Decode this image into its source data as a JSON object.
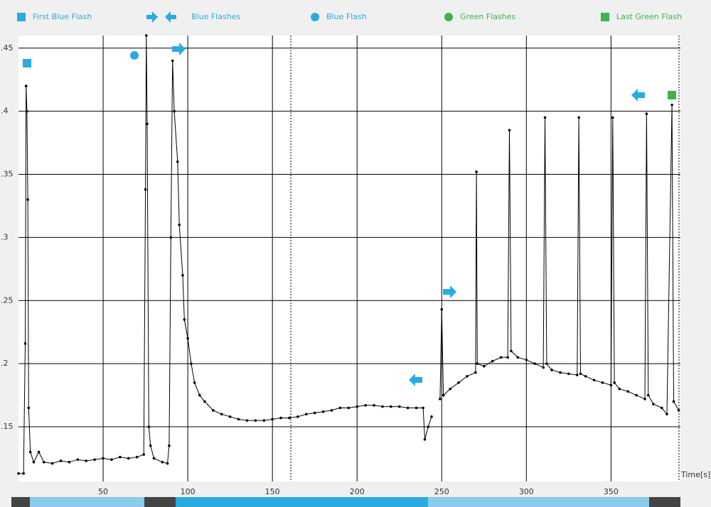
{
  "chart_data": {
    "type": "line",
    "x_label": "Time[s]",
    "legend": [
      {
        "label": "First Blue Flash",
        "color": "#29abe2",
        "shape": "square"
      },
      {
        "label": "Blue Flashes",
        "color": "#29abe2",
        "shape": "arrows"
      },
      {
        "label": "Blue Flash",
        "color": "#29abe2",
        "shape": "circle"
      },
      {
        "label": "Green Flashes",
        "color": "#39b54a",
        "shape": "circle"
      },
      {
        "label": "Last Green Flash",
        "color": "#39b54a",
        "shape": "square"
      }
    ],
    "x": [
      0,
      3,
      4,
      4.5,
      5,
      5.5,
      6,
      7,
      9,
      12,
      15,
      20,
      25,
      30,
      35,
      40,
      45,
      50,
      55,
      60,
      65,
      70,
      74,
      75,
      75.5,
      76,
      77,
      78,
      80,
      85,
      88,
      89,
      90,
      91,
      92,
      94,
      95,
      97,
      98,
      100,
      102,
      104,
      107,
      110,
      115,
      120,
      125,
      130,
      135,
      140,
      145,
      150,
      155,
      160,
      165,
      170,
      175,
      180,
      185,
      190,
      195,
      200,
      205,
      210,
      215,
      220,
      225,
      230,
      235,
      239,
      240,
      242,
      244,
      246,
      249,
      250,
      251,
      255,
      260,
      265,
      270,
      270.5,
      271,
      275,
      280,
      285,
      289,
      290,
      291,
      295,
      300,
      305,
      310,
      311,
      312,
      315,
      320,
      325,
      330,
      331,
      332,
      335,
      340,
      345,
      350,
      351,
      352,
      355,
      360,
      365,
      370,
      371,
      372,
      375,
      380,
      383,
      386,
      387,
      390
    ],
    "series": [
      {
        "color": "#000000",
        "values": [
          0.113,
          0.113,
          0.216,
          0.42,
          0.4,
          0.33,
          0.165,
          0.13,
          0.122,
          0.13,
          0.122,
          0.121,
          0.123,
          0.122,
          0.124,
          0.123,
          0.124,
          0.125,
          0.124,
          0.126,
          0.125,
          0.126,
          0.128,
          0.338,
          0.46,
          0.39,
          0.15,
          0.135,
          0.125,
          0.122,
          0.121,
          0.135,
          0.3,
          0.44,
          0.4,
          0.36,
          0.31,
          0.27,
          0.235,
          0.22,
          0.2,
          0.185,
          0.175,
          0.17,
          0.163,
          0.16,
          0.158,
          0.156,
          0.155,
          0.155,
          0.155,
          0.156,
          0.157,
          0.157,
          0.158,
          0.16,
          0.161,
          0.162,
          0.163,
          0.165,
          0.165,
          0.166,
          0.167,
          0.167,
          0.166,
          0.166,
          0.166,
          0.165,
          0.165,
          0.165,
          0.14,
          0.15,
          0.158,
          null,
          0.172,
          0.243,
          0.175,
          0.18,
          0.185,
          0.19,
          0.193,
          0.352,
          0.2,
          0.198,
          0.202,
          0.205,
          0.205,
          0.385,
          0.21,
          0.205,
          0.203,
          0.2,
          0.197,
          0.395,
          0.2,
          0.195,
          0.193,
          0.192,
          0.191,
          0.395,
          0.192,
          0.19,
          0.187,
          0.185,
          0.183,
          0.395,
          0.185,
          0.18,
          0.178,
          0.175,
          0.172,
          0.398,
          0.175,
          0.168,
          0.165,
          0.16,
          0.405,
          0.17,
          0.163
        ]
      }
    ],
    "xlim": [
      0,
      391
    ],
    "ylim": [
      0.1067,
      0.46
    ],
    "xticks": [
      50,
      100,
      150,
      200,
      250,
      300,
      350
    ],
    "yticks": [
      {
        "value": 0.15,
        "label": ".15"
      },
      {
        "value": 0.2,
        "label": ".2"
      },
      {
        "value": 0.25,
        "label": ".25"
      },
      {
        "value": 0.3,
        "label": ".3"
      },
      {
        "value": 0.35,
        "label": ".35"
      },
      {
        "value": 0.4,
        "label": ".4"
      },
      {
        "value": 0.45,
        "label": ".45"
      }
    ],
    "grid": true
  }
}
